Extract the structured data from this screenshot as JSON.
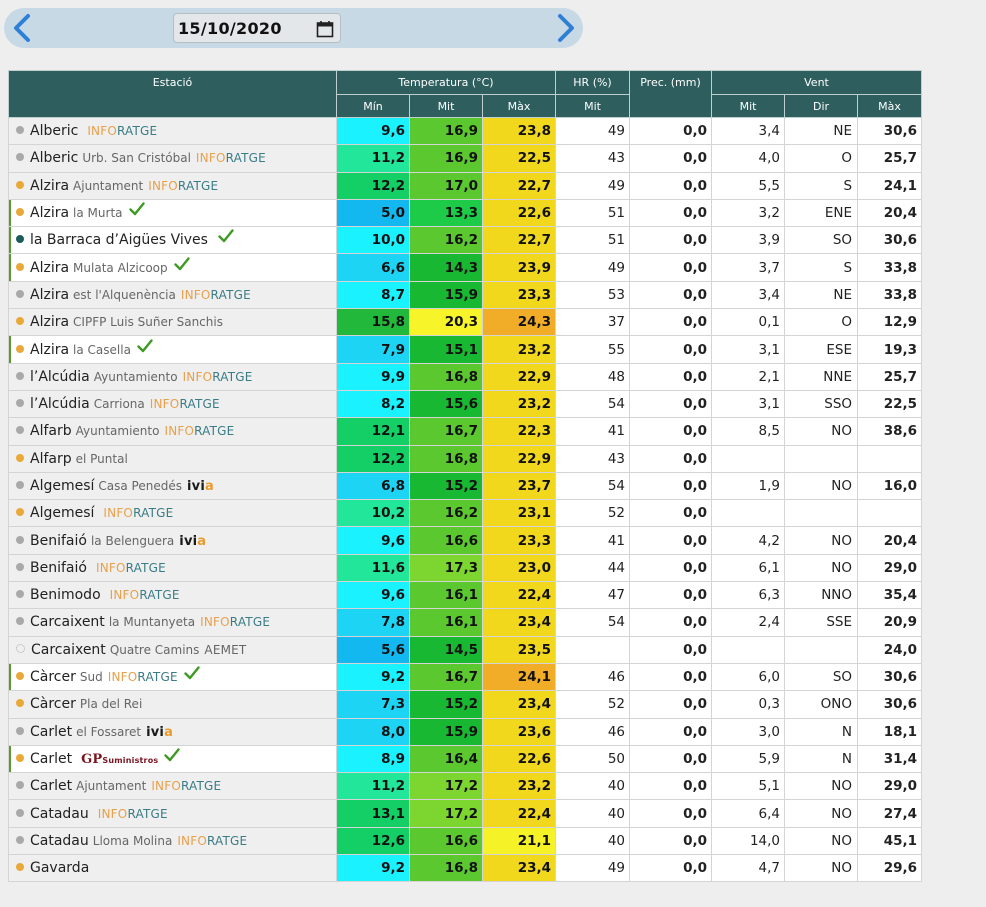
{
  "date": {
    "value": "15/10/2020"
  },
  "headers": {
    "station": "Estació",
    "temp": "Temperatura (°C)",
    "hr": "HR (%)",
    "prec": "Prec. (mm)",
    "wind": "Vent",
    "min": "Mín",
    "mit": "Mit",
    "max": "Màx",
    "hr_mit": "Mit",
    "wind_mit": "Mit",
    "wind_dir": "Dir",
    "wind_max": "Màx"
  },
  "colors": {
    "min_scale": [
      "#12b8ef",
      "#1ed4f5",
      "#1af2ff",
      "#22e69a",
      "#14cf66",
      "#22b83c"
    ],
    "mit_scale": [
      "#1ecb49",
      "#19b832",
      "#5cc830",
      "#7dd530",
      "#f7f52a"
    ],
    "max_scale": [
      "#f5f328",
      "#f7e02a",
      "#f2d81c",
      "#f2ad28"
    ]
  },
  "rows": [
    {
      "town": "Alberic",
      "sub": "",
      "logo": "inforatge",
      "dot": "gray",
      "hl": false,
      "check": false,
      "tmin": "9,6",
      "tmit": "16,9",
      "tmax": "23,8",
      "hr": "49",
      "prec": "0,0",
      "wmit": "3,4",
      "wdir": "NE",
      "wmax": "30,6",
      "cmin": "#1af2ff",
      "cmit": "#5cc830",
      "cmax": "#f2d81c"
    },
    {
      "town": "Alberic",
      "sub": "Urb. San Cristóbal",
      "logo": "inforatge",
      "dot": "gray",
      "hl": false,
      "check": false,
      "tmin": "11,2",
      "tmit": "16,9",
      "tmax": "22,5",
      "hr": "43",
      "prec": "0,0",
      "wmit": "4,0",
      "wdir": "O",
      "wmax": "25,7",
      "cmin": "#22e69a",
      "cmit": "#5cc830",
      "cmax": "#f2d81c"
    },
    {
      "town": "Alzira",
      "sub": "Ajuntament",
      "logo": "inforatge",
      "dot": "orange",
      "hl": false,
      "check": false,
      "tmin": "12,2",
      "tmit": "17,0",
      "tmax": "22,7",
      "hr": "49",
      "prec": "0,0",
      "wmit": "5,5",
      "wdir": "S",
      "wmax": "24,1",
      "cmin": "#14cf66",
      "cmit": "#5cc830",
      "cmax": "#f2d81c"
    },
    {
      "town": "Alzira",
      "sub": "la Murta",
      "logo": "",
      "dot": "orange",
      "hl": true,
      "check": true,
      "tmin": "5,0",
      "tmit": "13,3",
      "tmax": "22,6",
      "hr": "51",
      "prec": "0,0",
      "wmit": "3,2",
      "wdir": "ENE",
      "wmax": "20,4",
      "cmin": "#12b8ef",
      "cmit": "#1ecb49",
      "cmax": "#f2d81c"
    },
    {
      "town": "la Barraca d’Aigües Vives",
      "sub": "",
      "logo": "",
      "dot": "teal",
      "hl": true,
      "check": true,
      "tmin": "10,0",
      "tmit": "16,2",
      "tmax": "22,7",
      "hr": "51",
      "prec": "0,0",
      "wmit": "3,9",
      "wdir": "SO",
      "wmax": "30,6",
      "cmin": "#1af2ff",
      "cmit": "#5cc830",
      "cmax": "#f2d81c"
    },
    {
      "town": "Alzira",
      "sub": "Mulata Alzicoop",
      "logo": "",
      "dot": "orange",
      "hl": true,
      "check": true,
      "tmin": "6,6",
      "tmit": "14,3",
      "tmax": "23,9",
      "hr": "49",
      "prec": "0,0",
      "wmit": "3,7",
      "wdir": "S",
      "wmax": "33,8",
      "cmin": "#1ed4f5",
      "cmit": "#19b832",
      "cmax": "#f2d81c"
    },
    {
      "town": "Alzira",
      "sub": "est l'Alquenència",
      "logo": "inforatge",
      "dot": "gray",
      "hl": false,
      "check": false,
      "tmin": "8,7",
      "tmit": "15,9",
      "tmax": "23,3",
      "hr": "53",
      "prec": "0,0",
      "wmit": "3,4",
      "wdir": "NE",
      "wmax": "33,8",
      "cmin": "#1af2ff",
      "cmit": "#19b832",
      "cmax": "#f2d81c"
    },
    {
      "town": "Alzira",
      "sub": "CIPFP Luis Suñer Sanchis",
      "logo": "",
      "dot": "orange",
      "hl": false,
      "check": false,
      "tmin": "15,8",
      "tmit": "20,3",
      "tmax": "24,3",
      "hr": "37",
      "prec": "0,0",
      "wmit": "0,1",
      "wdir": "O",
      "wmax": "12,9",
      "cmin": "#22b83c",
      "cmit": "#f7f52a",
      "cmax": "#f2ad28"
    },
    {
      "town": "Alzira",
      "sub": "la Casella",
      "logo": "",
      "dot": "orange",
      "hl": true,
      "check": true,
      "tmin": "7,9",
      "tmit": "15,1",
      "tmax": "23,2",
      "hr": "55",
      "prec": "0,0",
      "wmit": "3,1",
      "wdir": "ESE",
      "wmax": "19,3",
      "cmin": "#1ed4f5",
      "cmit": "#19b832",
      "cmax": "#f2d81c"
    },
    {
      "town": "l’Alcúdia",
      "sub": "Ayuntamiento",
      "logo": "inforatge",
      "dot": "gray",
      "hl": false,
      "check": false,
      "tmin": "9,9",
      "tmit": "16,8",
      "tmax": "22,9",
      "hr": "48",
      "prec": "0,0",
      "wmit": "2,1",
      "wdir": "NNE",
      "wmax": "25,7",
      "cmin": "#1af2ff",
      "cmit": "#5cc830",
      "cmax": "#f2d81c"
    },
    {
      "town": "l’Alcúdia",
      "sub": "Carriona",
      "logo": "inforatge",
      "dot": "gray",
      "hl": false,
      "check": false,
      "tmin": "8,2",
      "tmit": "15,6",
      "tmax": "23,2",
      "hr": "54",
      "prec": "0,0",
      "wmit": "3,1",
      "wdir": "SSO",
      "wmax": "22,5",
      "cmin": "#1af2ff",
      "cmit": "#19b832",
      "cmax": "#f2d81c"
    },
    {
      "town": "Alfarb",
      "sub": "Ayuntamiento",
      "logo": "inforatge",
      "dot": "gray",
      "hl": false,
      "check": false,
      "tmin": "12,1",
      "tmit": "16,7",
      "tmax": "22,3",
      "hr": "41",
      "prec": "0,0",
      "wmit": "8,5",
      "wdir": "NO",
      "wmax": "38,6",
      "cmin": "#14cf66",
      "cmit": "#5cc830",
      "cmax": "#f2d81c"
    },
    {
      "town": "Alfarp",
      "sub": "el Puntal",
      "logo": "",
      "dot": "orange",
      "hl": false,
      "check": false,
      "tmin": "12,2",
      "tmit": "16,8",
      "tmax": "22,9",
      "hr": "43",
      "prec": "0,0",
      "wmit": "",
      "wdir": "",
      "wmax": "",
      "cmin": "#14cf66",
      "cmit": "#5cc830",
      "cmax": "#f2d81c"
    },
    {
      "town": "Algemesí",
      "sub": "Casa Penedés",
      "logo": "ivia",
      "dot": "gray",
      "hl": false,
      "check": false,
      "tmin": "6,8",
      "tmit": "15,2",
      "tmax": "23,7",
      "hr": "54",
      "prec": "0,0",
      "wmit": "1,9",
      "wdir": "NO",
      "wmax": "16,0",
      "cmin": "#1ed4f5",
      "cmit": "#19b832",
      "cmax": "#f2d81c"
    },
    {
      "town": "Algemesí",
      "sub": "",
      "logo": "inforatge",
      "dot": "orange",
      "hl": false,
      "check": false,
      "tmin": "10,2",
      "tmit": "16,2",
      "tmax": "23,1",
      "hr": "52",
      "prec": "0,0",
      "wmit": "",
      "wdir": "",
      "wmax": "",
      "cmin": "#22e69a",
      "cmit": "#5cc830",
      "cmax": "#f2d81c"
    },
    {
      "town": "Benifaió",
      "sub": "la Belenguera",
      "logo": "ivia",
      "dot": "gray",
      "hl": false,
      "check": false,
      "tmin": "9,6",
      "tmit": "16,6",
      "tmax": "23,3",
      "hr": "41",
      "prec": "0,0",
      "wmit": "4,2",
      "wdir": "NO",
      "wmax": "20,4",
      "cmin": "#1af2ff",
      "cmit": "#5cc830",
      "cmax": "#f2d81c"
    },
    {
      "town": "Benifaió",
      "sub": "",
      "logo": "inforatge",
      "dot": "gray",
      "hl": false,
      "check": false,
      "tmin": "11,6",
      "tmit": "17,3",
      "tmax": "23,0",
      "hr": "44",
      "prec": "0,0",
      "wmit": "6,1",
      "wdir": "NO",
      "wmax": "29,0",
      "cmin": "#22e69a",
      "cmit": "#7dd530",
      "cmax": "#f2d81c"
    },
    {
      "town": "Benimodo",
      "sub": "",
      "logo": "inforatge",
      "dot": "gray",
      "hl": false,
      "check": false,
      "tmin": "9,6",
      "tmit": "16,1",
      "tmax": "22,4",
      "hr": "47",
      "prec": "0,0",
      "wmit": "6,3",
      "wdir": "NNO",
      "wmax": "35,4",
      "cmin": "#1af2ff",
      "cmit": "#5cc830",
      "cmax": "#f2d81c"
    },
    {
      "town": "Carcaixent",
      "sub": "la Muntanyeta",
      "logo": "inforatge",
      "dot": "gray",
      "hl": false,
      "check": false,
      "tmin": "7,8",
      "tmit": "16,1",
      "tmax": "23,4",
      "hr": "54",
      "prec": "0,0",
      "wmit": "2,4",
      "wdir": "SSE",
      "wmax": "20,9",
      "cmin": "#1ed4f5",
      "cmit": "#5cc830",
      "cmax": "#f2d81c"
    },
    {
      "town": "Carcaixent",
      "sub": "Quatre Camins",
      "logo": "aemet",
      "dot": "outline",
      "hl": false,
      "check": false,
      "tmin": "5,6",
      "tmit": "14,5",
      "tmax": "23,5",
      "hr": "",
      "prec": "0,0",
      "wmit": "",
      "wdir": "",
      "wmax": "24,0",
      "cmin": "#12b8ef",
      "cmit": "#19b832",
      "cmax": "#f2d81c"
    },
    {
      "town": "Càrcer",
      "sub": "Sud",
      "logo": "inforatge",
      "dot": "orange",
      "hl": true,
      "check": true,
      "tmin": "9,2",
      "tmit": "16,7",
      "tmax": "24,1",
      "hr": "46",
      "prec": "0,0",
      "wmit": "6,0",
      "wdir": "SO",
      "wmax": "30,6",
      "cmin": "#1af2ff",
      "cmit": "#5cc830",
      "cmax": "#f2ad28"
    },
    {
      "town": "Càrcer",
      "sub": "Pla del Rei",
      "logo": "",
      "dot": "orange",
      "hl": false,
      "check": false,
      "tmin": "7,3",
      "tmit": "15,2",
      "tmax": "23,4",
      "hr": "52",
      "prec": "0,0",
      "wmit": "0,3",
      "wdir": "ONO",
      "wmax": "30,6",
      "cmin": "#1ed4f5",
      "cmit": "#19b832",
      "cmax": "#f2d81c"
    },
    {
      "town": "Carlet",
      "sub": "el Fossaret",
      "logo": "ivia",
      "dot": "gray",
      "hl": false,
      "check": false,
      "tmin": "8,0",
      "tmit": "15,9",
      "tmax": "23,6",
      "hr": "46",
      "prec": "0,0",
      "wmit": "3,0",
      "wdir": "N",
      "wmax": "18,1",
      "cmin": "#1ed4f5",
      "cmit": "#19b832",
      "cmax": "#f2d81c"
    },
    {
      "town": "Carlet",
      "sub": "",
      "logo": "gp",
      "dot": "orange",
      "hl": true,
      "check": true,
      "tmin": "8,9",
      "tmit": "16,4",
      "tmax": "22,6",
      "hr": "50",
      "prec": "0,0",
      "wmit": "5,9",
      "wdir": "N",
      "wmax": "31,4",
      "cmin": "#1af2ff",
      "cmit": "#5cc830",
      "cmax": "#f2d81c"
    },
    {
      "town": "Carlet",
      "sub": "Ajuntament",
      "logo": "inforatge",
      "dot": "gray",
      "hl": false,
      "check": false,
      "tmin": "11,2",
      "tmit": "17,2",
      "tmax": "23,2",
      "hr": "40",
      "prec": "0,0",
      "wmit": "5,1",
      "wdir": "NO",
      "wmax": "29,0",
      "cmin": "#22e69a",
      "cmit": "#7dd530",
      "cmax": "#f2d81c"
    },
    {
      "town": "Catadau",
      "sub": "",
      "logo": "inforatge",
      "dot": "gray",
      "hl": false,
      "check": false,
      "tmin": "13,1",
      "tmit": "17,2",
      "tmax": "22,4",
      "hr": "40",
      "prec": "0,0",
      "wmit": "6,4",
      "wdir": "NO",
      "wmax": "27,4",
      "cmin": "#14cf66",
      "cmit": "#7dd530",
      "cmax": "#f2d81c"
    },
    {
      "town": "Catadau",
      "sub": "Lloma Molina",
      "logo": "inforatge",
      "dot": "gray",
      "hl": false,
      "check": false,
      "tmin": "12,6",
      "tmit": "16,6",
      "tmax": "21,1",
      "hr": "40",
      "prec": "0,0",
      "wmit": "14,0",
      "wdir": "NO",
      "wmax": "45,1",
      "cmin": "#14cf66",
      "cmit": "#5cc830",
      "cmax": "#f5f328"
    },
    {
      "town": "Gavarda",
      "sub": "",
      "logo": "",
      "dot": "orange",
      "hl": false,
      "check": false,
      "tmin": "9,2",
      "tmit": "16,8",
      "tmax": "23,4",
      "hr": "49",
      "prec": "0,0",
      "wmit": "4,7",
      "wdir": "NO",
      "wmax": "29,6",
      "cmin": "#1af2ff",
      "cmit": "#5cc830",
      "cmax": "#f2d81c"
    }
  ],
  "logos": {
    "inforatge_a": "INFO",
    "inforatge_b": "RATGE",
    "ivia_a": "ivi",
    "ivia_b": "a",
    "gp_a": "GP",
    "gp_b": "Suministros",
    "aemet": "AEMET"
  }
}
